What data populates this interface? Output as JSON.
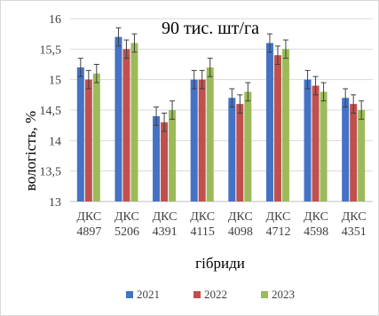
{
  "chart_data": {
    "type": "bar",
    "title": "90 тис. шт/га",
    "xlabel": "гібриди",
    "ylabel": "вологість, %",
    "ylim": [
      13,
      16
    ],
    "yticks": [
      "13",
      "13,5",
      "14",
      "14,5",
      "15",
      "15,5",
      "16"
    ],
    "grid": true,
    "legend_position": "bottom",
    "categories": [
      [
        "ДКС",
        "4897"
      ],
      [
        "ДКС",
        "5206"
      ],
      [
        "ДКС",
        "4391"
      ],
      [
        "ДКС",
        "4115"
      ],
      [
        "ДКС",
        "4098"
      ],
      [
        "ДКС",
        "4712"
      ],
      [
        "ДКС",
        "4598"
      ],
      [
        "ДКС",
        "4351"
      ]
    ],
    "series": [
      {
        "name": "2021",
        "color": "#4472c4",
        "values": [
          15.2,
          15.7,
          14.4,
          15.0,
          14.7,
          15.6,
          15.0,
          14.7
        ]
      },
      {
        "name": "2022",
        "color": "#c0504d",
        "values": [
          15.0,
          15.5,
          14.3,
          15.0,
          14.6,
          15.4,
          14.9,
          14.6
        ]
      },
      {
        "name": "2023",
        "color": "#9bbb59",
        "values": [
          15.1,
          15.6,
          14.5,
          15.2,
          14.8,
          15.5,
          14.8,
          14.5
        ]
      }
    ],
    "error_bars": 0.15
  }
}
